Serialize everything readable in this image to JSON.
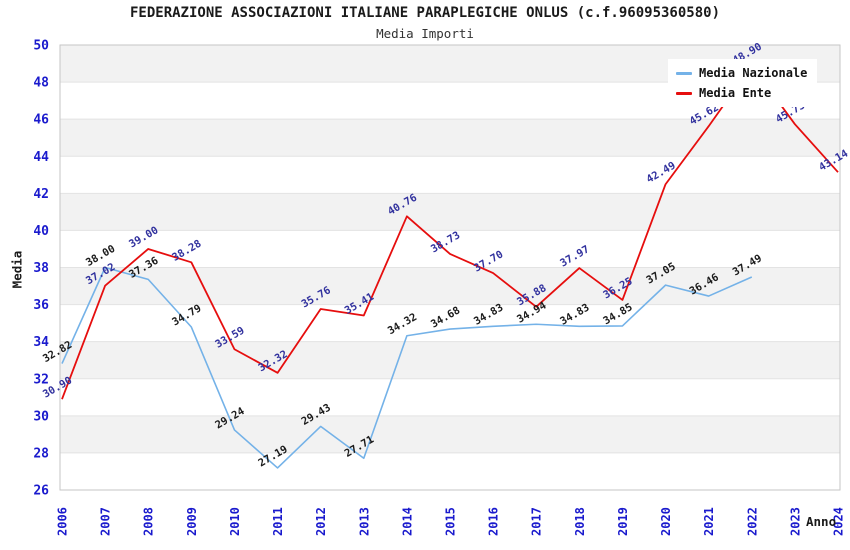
{
  "header": {
    "title": "FEDERAZIONE ASSOCIAZIONI ITALIANE PARAPLEGICHE ONLUS (c.f.96095360580)",
    "subtitle": "Media Importi"
  },
  "chart_data": {
    "type": "line",
    "x": [
      2006,
      2007,
      2008,
      2009,
      2010,
      2011,
      2012,
      2013,
      2014,
      2015,
      2016,
      2017,
      2018,
      2019,
      2020,
      2021,
      2022,
      2023,
      2024
    ],
    "series": [
      {
        "name": "Media Nazionale",
        "color": "#74b2e8",
        "label_color": "#1a1a1a",
        "values": [
          32.82,
          38.0,
          37.36,
          34.79,
          29.24,
          27.19,
          29.43,
          27.71,
          34.32,
          34.68,
          34.83,
          34.94,
          34.83,
          34.85,
          37.05,
          36.46,
          37.49,
          null,
          null
        ]
      },
      {
        "name": "Media Ente",
        "color": "#e60e0e",
        "label_color": "#31319e",
        "values": [
          30.9,
          37.02,
          39.0,
          38.28,
          33.59,
          32.32,
          35.76,
          35.41,
          40.76,
          38.73,
          37.7,
          35.88,
          37.97,
          36.25,
          42.49,
          45.62,
          48.9,
          45.73,
          43.14
        ]
      }
    ],
    "xlabel": "Anno",
    "ylabel": "Media",
    "ylim": [
      26,
      50
    ],
    "ytick_step": 2,
    "yticks": [
      26,
      28,
      30,
      32,
      34,
      36,
      38,
      40,
      42,
      44,
      46,
      48,
      50
    ],
    "grid": {
      "band_fill": "#f2f2f2",
      "line_color": "#e3e3e3",
      "border_color": "#c6c6c6"
    },
    "tick_color": "#1a1acd",
    "legend_position": "top-right",
    "grid_on": true
  }
}
